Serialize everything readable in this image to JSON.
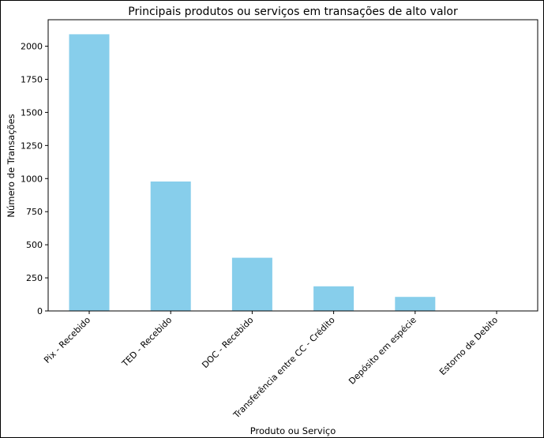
{
  "chart_data": {
    "type": "bar",
    "title": "Principais produtos ou serviços em transações de alto valor",
    "xlabel": "Produto ou Serviço",
    "ylabel": "Número de Transações",
    "categories": [
      "Pix - Recebido",
      "TED - Recebido",
      "DOC - Recebido",
      "Transferência entre CC - Crédito",
      "Depósito em espécie",
      "Estorno de Debito"
    ],
    "values": [
      2090,
      978,
      402,
      186,
      106,
      3
    ],
    "ylim": [
      0,
      2200
    ],
    "yticks": [
      0,
      250,
      500,
      750,
      1000,
      1250,
      1500,
      1750,
      2000
    ],
    "bar_color": "#87CEEB",
    "grid": false,
    "legend": "none"
  }
}
